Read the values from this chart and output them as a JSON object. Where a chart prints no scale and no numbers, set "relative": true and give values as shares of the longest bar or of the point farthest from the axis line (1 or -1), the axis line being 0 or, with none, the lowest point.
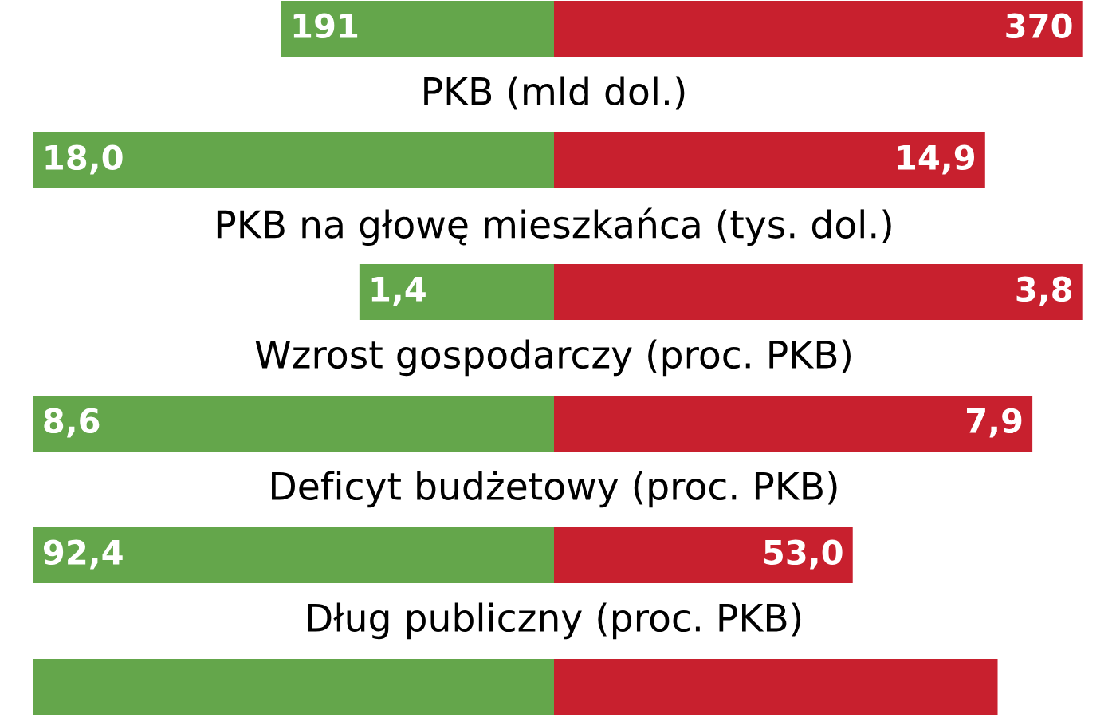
{
  "chart_data": [
    {
      "type": "bar",
      "orientation": "horizontal",
      "stacked": true,
      "tick_labels": false,
      "categories": [
        null
      ],
      "xlabel": "PKB (mld dol.)",
      "series": [
        {
          "color": "#64a64b",
          "values": [
            191
          ],
          "value_labels": [
            "191"
          ]
        },
        {
          "color": "#c8202e",
          "values": [
            370
          ],
          "value_labels": [
            "370"
          ]
        }
      ]
    },
    {
      "type": "bar",
      "orientation": "horizontal",
      "stacked": true,
      "tick_labels": false,
      "categories": [
        null
      ],
      "xlabel": "PKB na głowę mieszkańca (tys. dol.)",
      "series": [
        {
          "color": "#64a64b",
          "values": [
            18.0
          ],
          "value_labels": [
            "18,0"
          ]
        },
        {
          "color": "#c8202e",
          "values": [
            14.9
          ],
          "value_labels": [
            "14,9"
          ]
        }
      ]
    },
    {
      "type": "bar",
      "orientation": "horizontal",
      "stacked": true,
      "tick_labels": false,
      "categories": [
        null
      ],
      "xlabel": "Wzrost gospodarczy (proc. PKB)",
      "series": [
        {
          "color": "#64a64b",
          "values": [
            1.4
          ],
          "value_labels": [
            "1,4"
          ]
        },
        {
          "color": "#c8202e",
          "values": [
            3.8
          ],
          "value_labels": [
            "3,8"
          ]
        }
      ]
    },
    {
      "type": "bar",
      "orientation": "horizontal",
      "stacked": true,
      "tick_labels": false,
      "categories": [
        null
      ],
      "xlabel": "Deficyt budżetowy (proc. PKB)",
      "series": [
        {
          "color": "#64a64b",
          "values": [
            8.6
          ],
          "value_labels": [
            "8,6"
          ]
        },
        {
          "color": "#c8202e",
          "values": [
            7.9
          ],
          "value_labels": [
            "7,9"
          ]
        }
      ]
    },
    {
      "type": "bar",
      "orientation": "horizontal",
      "stacked": true,
      "tick_labels": false,
      "categories": [
        null
      ],
      "xlabel": "Dług publiczny (proc. PKB)",
      "series": [
        {
          "color": "#64a64b",
          "values": [
            92.4
          ],
          "value_labels": [
            "92,4"
          ]
        },
        {
          "color": "#c8202e",
          "values": [
            53.0
          ],
          "value_labels": [
            "53,0"
          ]
        }
      ]
    },
    {
      "type": "bar",
      "orientation": "horizontal",
      "stacked": true,
      "relative": true,
      "categories": [
        null
      ],
      "series": [
        {
          "color": "#64a64b",
          "values": [
            0.54
          ]
        },
        {
          "color": "#c8202e",
          "values": [
            0.46
          ]
        }
      ]
    }
  ]
}
